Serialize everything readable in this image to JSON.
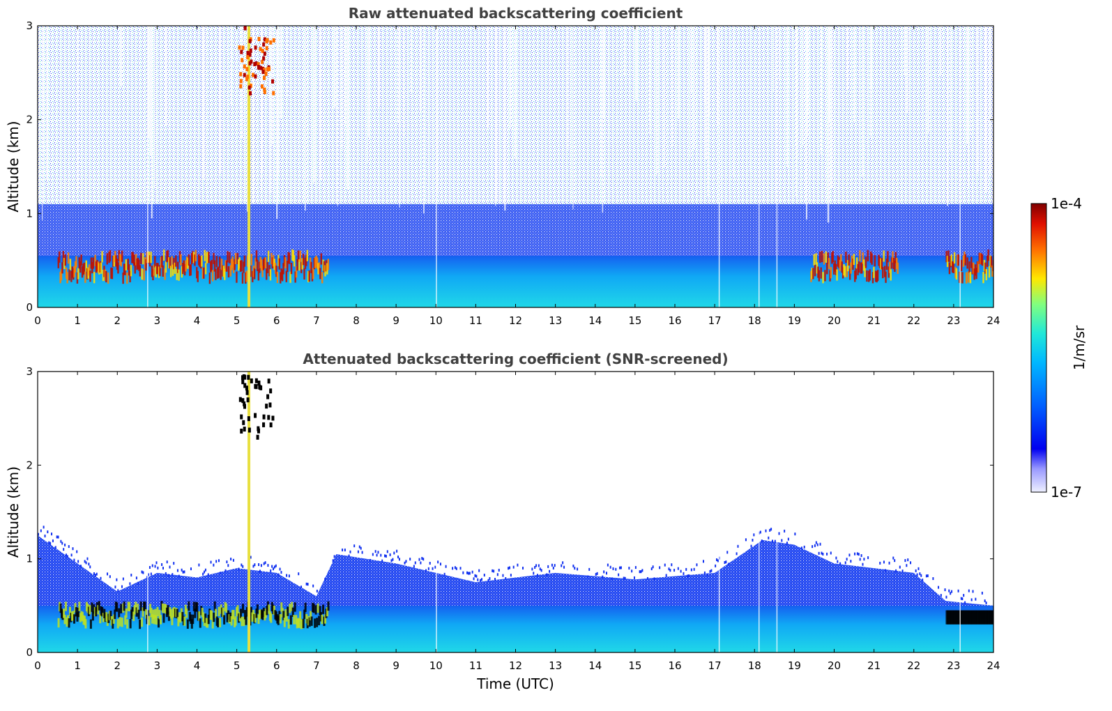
{
  "chart_data": [
    {
      "type": "heatmap",
      "title": "Raw attenuated backscattering coefficient",
      "xlabel": "",
      "ylabel": "Altitude (km)",
      "xlim": [
        0,
        24
      ],
      "ylim": [
        0,
        3
      ],
      "xticks": [
        "0",
        "1",
        "2",
        "3",
        "4",
        "5",
        "6",
        "7",
        "8",
        "9",
        "10",
        "11",
        "12",
        "13",
        "14",
        "15",
        "16",
        "17",
        "18",
        "19",
        "20",
        "21",
        "22",
        "23",
        "24"
      ],
      "yticks": [
        "0",
        "1",
        "2",
        "3"
      ],
      "color_scale": "log",
      "features": {
        "boundary_layer_top_km": 0.45,
        "aerosol_layer_bands": [
          [
            0.5,
            7.3
          ],
          [
            19.4,
            21.6
          ],
          [
            22.8,
            24
          ]
        ],
        "cloud_plume": {
          "time_utc": [
            5.0,
            5.9
          ],
          "altitude_km": [
            2.3,
            3.0
          ]
        },
        "noise_above_km": 1.0
      }
    },
    {
      "type": "heatmap",
      "title": "Attenuated backscattering coefficient (SNR-screened)",
      "xlabel": "Time (UTC)",
      "ylabel": "Altitude (km)",
      "xlim": [
        0,
        24
      ],
      "ylim": [
        0,
        3
      ],
      "xticks": [
        "0",
        "1",
        "2",
        "3",
        "4",
        "5",
        "6",
        "7",
        "8",
        "9",
        "10",
        "11",
        "12",
        "13",
        "14",
        "15",
        "16",
        "17",
        "18",
        "19",
        "20",
        "21",
        "22",
        "23",
        "24"
      ],
      "yticks": [
        "0",
        "1",
        "2",
        "3"
      ],
      "color_scale": "log",
      "features": {
        "screened_layer_top_km": [
          [
            0,
            1.25
          ],
          [
            1,
            0.95
          ],
          [
            2,
            0.65
          ],
          [
            3,
            0.85
          ],
          [
            4,
            0.8
          ],
          [
            5,
            0.9
          ],
          [
            6,
            0.85
          ],
          [
            7,
            0.6
          ],
          [
            7.5,
            1.05
          ],
          [
            9,
            0.95
          ],
          [
            11,
            0.75
          ],
          [
            13,
            0.85
          ],
          [
            15,
            0.78
          ],
          [
            17,
            0.85
          ],
          [
            18.2,
            1.2
          ],
          [
            19,
            1.15
          ],
          [
            20,
            0.95
          ],
          [
            22,
            0.85
          ],
          [
            22.8,
            0.55
          ],
          [
            24,
            0.5
          ]
        ]
      }
    }
  ],
  "colorbar": {
    "max_label": "1e-4",
    "min_label": "1e-7",
    "unit": "1/m/sr",
    "colors": [
      "#e8e8ff",
      "#c8c8ff",
      "#9898ff",
      "#0000f0",
      "#0060ff",
      "#00b0ff",
      "#20e8e0",
      "#70ff90",
      "#c0ff40",
      "#ffe000",
      "#ff8000",
      "#e01000",
      "#800000"
    ]
  }
}
